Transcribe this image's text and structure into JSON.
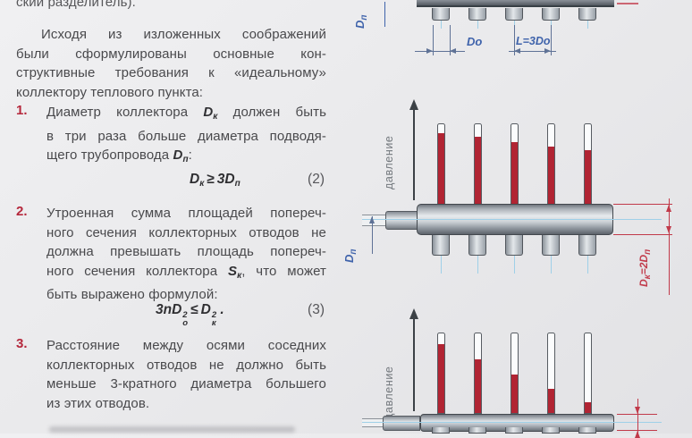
{
  "document": {
    "cut_top_line": "ский разделитель).",
    "intro": {
      "lines": [
        "Исходя из изложенных соображений",
        "были сформулированы основные кон-",
        "структивные требования к «идеальному»",
        "коллектору теплового пункта:"
      ]
    },
    "items": [
      {
        "num": "1.",
        "l1a": "Диаметр коллектора ",
        "l1b": "D",
        "l1bsub": "к",
        "l1c": " должен быть",
        "l2": "в три раза больше диаметра подводя-",
        "l3a": "щего трубопровода ",
        "l3b": "D",
        "l3bsub": "п",
        "l3c": ":"
      },
      {
        "num": "2.",
        "l1": "Утроенная сумма площадей попереч-",
        "l2": "ного сечения коллекторных отводов не",
        "l3": "должна превышать площадь попереч-",
        "l4a": "ного сечения коллектора ",
        "l4b": "S",
        "l4bsub": "к",
        "l4c": ", что может",
        "l5": "быть выражено формулой:"
      },
      {
        "num": "3.",
        "l1": "Расстояние между осями соседних",
        "l2": "коллекторных отводов не должно быть",
        "l3": "меньше 3-кратного диаметра большего",
        "l4": "из этих отводов."
      }
    ],
    "equations": {
      "eq2": {
        "d1": "D",
        "d1sub": "к",
        "rel": "≥",
        "d2": "3D",
        "d2sub": "п",
        "number": "(2)"
      },
      "eq3": {
        "t1": "3nD",
        "t1sup": "2",
        "t1sub": "о",
        "rel": "≤",
        "t2": "D",
        "t2sup": "2",
        "t2sub": "к",
        "tail": " .",
        "number": "(3)"
      }
    }
  },
  "diagrams": {
    "pressure_label": "давление",
    "dn_label": {
      "d": "D",
      "sub": "п"
    },
    "do_label": "Do",
    "l_label": "L=3Do",
    "dk_label": {
      "a": "D",
      "asub": "к",
      "mid": "=2D",
      "bsub": "п"
    },
    "middle_tube_fill_percent": [
      89,
      84,
      78,
      72,
      67
    ],
    "bottom_tube_fill_percent": [
      86,
      67,
      48,
      30,
      13
    ],
    "colors": {
      "accent_red": "#b5283c",
      "tube_red": "#b12433",
      "dimension_red": "#c13a4a",
      "label_blue": "#3f63ab",
      "centerline_blue": "#9fd0e8"
    }
  }
}
